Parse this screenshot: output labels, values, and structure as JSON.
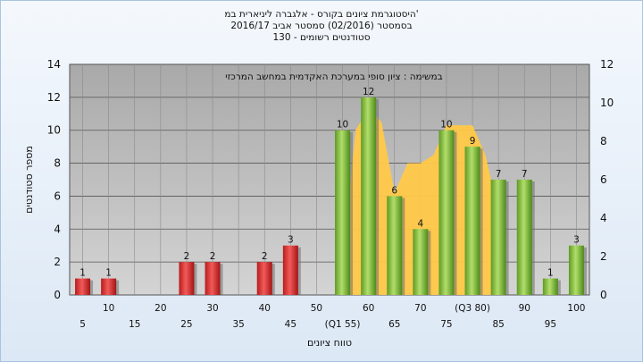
{
  "header": {
    "line1": "היסטוגרמת ציונים בקורס - אלגברה ליניארית במ'",
    "line2": "בסמסטר  (02/2016)  סמסטר אביב 2016/17",
    "line3": "סטודנטים רשומים - 130"
  },
  "chart_data": {
    "type": "bar",
    "annotation": "במשימה : ציון סופי במערכת האקדמית במחשב המרכזי",
    "xlabel": "טווח ציונים",
    "ylabel": "מספר סטודנטים",
    "ylim": [
      0,
      14
    ],
    "y_ticks": [
      0,
      2,
      4,
      6,
      8,
      10,
      12,
      14
    ],
    "y2lim": [
      0,
      12
    ],
    "y2_ticks": [
      0,
      2,
      4,
      6,
      8,
      10,
      12
    ],
    "grid": true,
    "x_tick_labels": [
      {
        "label": "5",
        "row": 2
      },
      {
        "label": "10",
        "row": 1
      },
      {
        "label": "15",
        "row": 2
      },
      {
        "label": "20",
        "row": 1
      },
      {
        "label": "25",
        "row": 2
      },
      {
        "label": "30",
        "row": 1
      },
      {
        "label": "35",
        "row": 2
      },
      {
        "label": "40",
        "row": 1
      },
      {
        "label": "45",
        "row": 2
      },
      {
        "label": "50",
        "row": 1
      },
      {
        "label": "(Q1 55)",
        "row": 2
      },
      {
        "label": "60",
        "row": 1
      },
      {
        "label": "65",
        "row": 2
      },
      {
        "label": "70",
        "row": 1
      },
      {
        "label": "75",
        "row": 2
      },
      {
        "label": "(Q3 80)",
        "row": 1
      },
      {
        "label": "85",
        "row": 2
      },
      {
        "label": "90",
        "row": 1
      },
      {
        "label": "95",
        "row": 2
      },
      {
        "label": "100",
        "row": 1
      }
    ],
    "bars": [
      {
        "x": 5,
        "value": 1,
        "group": "fail"
      },
      {
        "x": 10,
        "value": 1,
        "group": "fail"
      },
      {
        "x": 25,
        "value": 2,
        "group": "fail"
      },
      {
        "x": 30,
        "value": 2,
        "group": "fail"
      },
      {
        "x": 40,
        "value": 2,
        "group": "fail"
      },
      {
        "x": 45,
        "value": 3,
        "group": "fail"
      },
      {
        "x": 55,
        "value": 10,
        "group": "pass"
      },
      {
        "x": 60,
        "value": 12,
        "group": "pass"
      },
      {
        "x": 65,
        "value": 6,
        "group": "pass"
      },
      {
        "x": 70,
        "value": 4,
        "group": "pass"
      },
      {
        "x": 75,
        "value": 10,
        "group": "pass"
      },
      {
        "x": 80,
        "value": 9,
        "group": "pass"
      },
      {
        "x": 85,
        "value": 7,
        "group": "pass"
      },
      {
        "x": 90,
        "value": 7,
        "group": "pass"
      },
      {
        "x": 95,
        "value": 1,
        "group": "pass"
      },
      {
        "x": 100,
        "value": 3,
        "group": "pass"
      }
    ],
    "iqr_area": {
      "x": [
        55,
        57.5,
        60,
        62.5,
        65,
        67.5,
        70,
        72.5,
        75,
        77.5,
        80,
        82.5,
        85
      ],
      "y": [
        2,
        10,
        11.3,
        10.5,
        6.2,
        8,
        8,
        8.5,
        10.3,
        10.3,
        10.3,
        8.5,
        5
      ]
    },
    "colors": {
      "fail": "#e03a3a",
      "pass": "#8cc640",
      "area": "#ffc848",
      "plot_bg": "#bdbdbd",
      "plot_bg_light": "#d6d6d6"
    }
  }
}
